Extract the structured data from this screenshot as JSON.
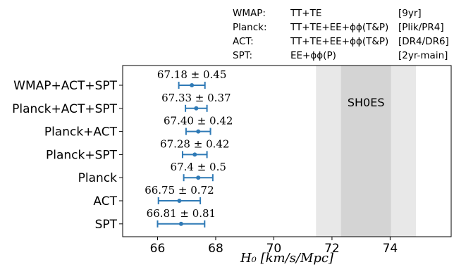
{
  "legend_table": {
    "rows": [
      {
        "name": "WMAP:",
        "data": "TT+TE",
        "release": "[9yr]"
      },
      {
        "name": "Planck:",
        "data": "TT+TE+EE+ϕϕ(T&P)",
        "release": "[Plik/PR4]"
      },
      {
        "name": "ACT:",
        "data": "TT+TE+EE+ϕϕ(T&P)",
        "release": "[DR4/DR6]"
      },
      {
        "name": "SPT:",
        "data": "EE+ϕϕ(P)",
        "release": "[2yr-main]"
      }
    ]
  },
  "chart_data": {
    "type": "errorbar",
    "xlabel": "H₀ [km/s/Mpc]",
    "xlim": [
      64.8,
      76.1
    ],
    "xticks": [
      66,
      68,
      70,
      72,
      74
    ],
    "grid": false,
    "categories": [
      "WMAP+ACT+SPT",
      "Planck+ACT+SPT",
      "Planck+ACT",
      "Planck+SPT",
      "Planck",
      "ACT",
      "SPT"
    ],
    "values": [
      67.18,
      67.33,
      67.4,
      67.28,
      67.4,
      66.75,
      66.81
    ],
    "errors": [
      0.45,
      0.37,
      0.42,
      0.42,
      0.5,
      0.72,
      0.81
    ],
    "value_labels": [
      "67.18 ± 0.45",
      "67.33 ± 0.37",
      "67.40 ± 0.42",
      "67.28 ± 0.42",
      "67.4 ± 0.5",
      "66.75 ± 0.72",
      "66.81 ± 0.81"
    ],
    "sh0es": {
      "label": "SH0ES",
      "center": 73.17,
      "sigma1": 0.86,
      "sigma2": 1.72
    },
    "colors": {
      "marker": "#2f7ab6",
      "band_inner": "#d4d4d4",
      "band_outer": "#e8e8e8"
    }
  }
}
